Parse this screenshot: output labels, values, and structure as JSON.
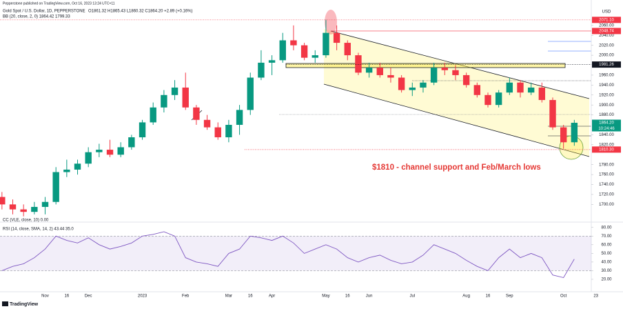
{
  "publisher": "Pepperstone published on TradingView.com, Oct 16, 2023 13:24 UTC+11",
  "footer": "TradingView",
  "chart_data": [
    {
      "type": "candlestick",
      "title": "Gold Spot / U.S. Dollar, 1D, PEPPERSTONE",
      "ohlc_text": "O1861.32 H1865.43 L1860.32 C1864.20 +2.89 (+0.16%)",
      "indicator_labels": [
        "BB (20, close, 2, 0) 1864.42 1799.33",
        "CC (VLE, close, 10) 0.00"
      ],
      "annotation": "$1810 - channel support and Feb/March lows",
      "y_unit": "USD",
      "countdown": "10:24:46",
      "up_color": "#089981",
      "down_color": "#f23645",
      "categories": [
        null,
        null,
        null,
        null,
        "Nov",
        null,
        "16",
        null,
        "Dec",
        null,
        null,
        null,
        null,
        "2023",
        null,
        null,
        null,
        "Feb",
        null,
        null,
        null,
        "Mar",
        null,
        "16",
        null,
        "Apr",
        null,
        null,
        null,
        null,
        "May",
        null,
        "16",
        null,
        "Jun",
        null,
        null,
        null,
        "Jul",
        null,
        null,
        null,
        null,
        "Aug",
        null,
        "16",
        null,
        "Sep",
        null,
        null,
        null,
        null,
        "Oct",
        null,
        null,
        "23"
      ],
      "open": [
        1715,
        1700,
        1690,
        1685,
        1695,
        1705,
        1765,
        1770,
        1782,
        1805,
        1810,
        1800,
        1815,
        1835,
        1865,
        1895,
        1920,
        1935,
        1895,
        1870,
        1855,
        1835,
        1860,
        1890,
        1955,
        1985,
        1990,
        2030,
        2020,
        1995,
        2000,
        2045,
        2025,
        2000,
        1965,
        1975,
        1960,
        1955,
        1930,
        1935,
        1945,
        1975,
        1970,
        1960,
        1940,
        1920,
        1900,
        1925,
        1945,
        1925,
        1935,
        1910,
        1855,
        1825,
        null,
        null
      ],
      "high": [
        1725,
        1710,
        1700,
        1705,
        1715,
        1775,
        1790,
        1790,
        1815,
        1822,
        1830,
        1825,
        1840,
        1870,
        1905,
        1930,
        1950,
        1965,
        1900,
        1880,
        1865,
        1870,
        1900,
        1965,
        2010,
        2000,
        2045,
        2060,
        2025,
        2010,
        2072,
        2060,
        2030,
        2005,
        1985,
        1985,
        1975,
        1960,
        1945,
        1950,
        1985,
        1985,
        1980,
        1965,
        1945,
        1925,
        1930,
        1955,
        1950,
        1945,
        1945,
        1915,
        1860,
        1870,
        null,
        null
      ],
      "low": [
        1690,
        1680,
        1676,
        1680,
        1680,
        1700,
        1755,
        1760,
        1775,
        1795,
        1795,
        1795,
        1810,
        1830,
        1860,
        1885,
        1910,
        1890,
        1860,
        1850,
        1830,
        1825,
        1840,
        1880,
        1950,
        1960,
        1985,
        2010,
        1990,
        1985,
        1995,
        2010,
        1990,
        1960,
        1955,
        1955,
        1945,
        1925,
        1918,
        1925,
        1940,
        1960,
        1950,
        1935,
        1915,
        1895,
        1895,
        1920,
        1915,
        1920,
        1905,
        1850,
        1812,
        1818,
        null,
        null
      ],
      "close": [
        1700,
        1690,
        1685,
        1695,
        1705,
        1765,
        1770,
        1782,
        1805,
        1810,
        1800,
        1815,
        1835,
        1865,
        1895,
        1920,
        1935,
        1895,
        1870,
        1855,
        1835,
        1860,
        1890,
        1955,
        1985,
        1990,
        2030,
        2020,
        1995,
        2000,
        2045,
        2025,
        2000,
        1965,
        1975,
        1960,
        1955,
        1930,
        1935,
        1945,
        1975,
        1970,
        1960,
        1940,
        1920,
        1900,
        1925,
        1945,
        1925,
        1935,
        1910,
        1855,
        1825,
        1864.2,
        null,
        null
      ],
      "ylim": [
        1670,
        2100
      ],
      "yticks": [
        {
          "value": 1700,
          "label": "1700.00"
        },
        {
          "value": 1720,
          "label": "1720.00"
        },
        {
          "value": 1740,
          "label": "1740.00"
        },
        {
          "value": 1760,
          "label": "1760.00"
        },
        {
          "value": 1780,
          "label": "1780.00"
        },
        {
          "value": 1820,
          "label": "1820.00"
        },
        {
          "value": 1840,
          "label": "1840.00"
        },
        {
          "value": 1880,
          "label": "1880.00"
        },
        {
          "value": 1900,
          "label": "1900.00"
        },
        {
          "value": 1920,
          "label": "1920.00"
        },
        {
          "value": 1940,
          "label": "1940.00"
        },
        {
          "value": 1960,
          "label": "1960.00"
        },
        {
          "value": 2000,
          "label": "2000.00"
        },
        {
          "value": 2020,
          "label": "2020.00"
        },
        {
          "value": 2040,
          "label": "2040.00"
        },
        {
          "value": 2060,
          "label": "2060.00"
        }
      ],
      "price_labels": [
        {
          "value": 2071.1,
          "label": "2071.10",
          "color": "#f23645"
        },
        {
          "value": 2048.74,
          "label": "2048.74",
          "color": "#f23645"
        },
        {
          "value": 1981.26,
          "label": "1981.26",
          "color": "#131722"
        },
        {
          "value": 1864.2,
          "label": "1864.20",
          "color": "#089981"
        },
        {
          "value": 1810.3,
          "label": "1810.30",
          "color": "#f23645"
        }
      ]
    },
    {
      "type": "line",
      "title": "RSI (14, close, SMA, 14, 2) 43.44 35.0",
      "color": "#7e57c2",
      "values": [
        30,
        35,
        38,
        45,
        55,
        70,
        65,
        62,
        68,
        60,
        55,
        58,
        62,
        70,
        72,
        75,
        70,
        45,
        40,
        38,
        35,
        50,
        55,
        70,
        68,
        65,
        70,
        62,
        50,
        55,
        60,
        55,
        45,
        40,
        45,
        48,
        42,
        38,
        40,
        48,
        60,
        55,
        50,
        42,
        35,
        30,
        45,
        55,
        45,
        50,
        45,
        25,
        22,
        43.44,
        null,
        null
      ],
      "band": [
        30,
        70
      ],
      "ylim": [
        8,
        83
      ],
      "yticks": [
        {
          "value": 20,
          "label": "20.00"
        },
        {
          "value": 30,
          "label": "30.00"
        },
        {
          "value": 40,
          "label": "40.00"
        },
        {
          "value": 50,
          "label": "50.00"
        },
        {
          "value": 60,
          "label": "60.00"
        },
        {
          "value": 70,
          "label": "70.00"
        },
        {
          "value": 80,
          "label": "80.00"
        }
      ]
    }
  ]
}
